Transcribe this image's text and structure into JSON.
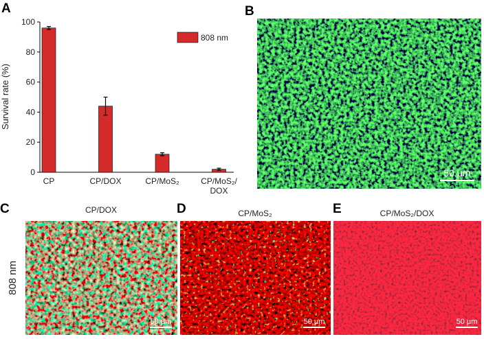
{
  "chart_data": {
    "type": "bar",
    "y_label": "Survival rate (%)",
    "categories": [
      "CP",
      "CP/DOX",
      "CP/MoS₂",
      "CP/MoS₂/DOX"
    ],
    "series": [
      {
        "name": "808 nm",
        "color": "#d42a2a",
        "values": [
          96,
          44,
          12,
          2
        ],
        "errors": [
          1,
          6,
          1,
          0.7
        ]
      }
    ],
    "ylim": [
      0,
      100
    ],
    "yticks": [
      0,
      20,
      40,
      60,
      80,
      100
    ],
    "grid": false,
    "legend": "upper right"
  },
  "panels": {
    "letters": [
      "A",
      "B",
      "C",
      "D",
      "E"
    ],
    "titles": [
      "CP/DOX",
      "CP/MoS₂",
      "CP/MoS₂/DOX"
    ],
    "row_label": "808 nm",
    "scale_bars": [
      "50 µm",
      "50 µm",
      "50 µm",
      "50 µm"
    ]
  }
}
